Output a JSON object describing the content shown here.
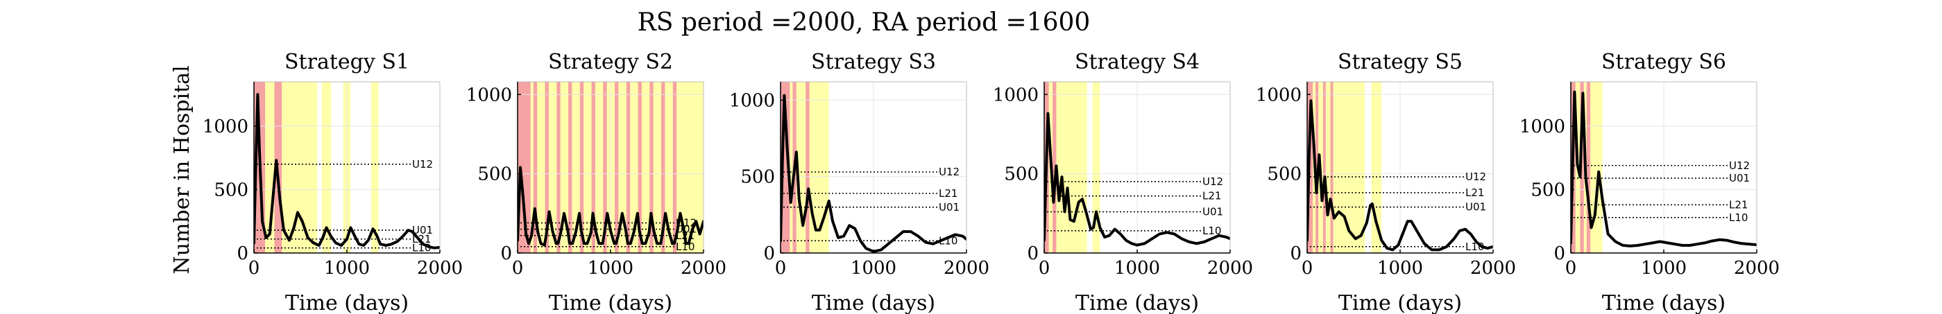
{
  "figure": {
    "suptitle": "RS period =2000, RA period =1600",
    "ylabel": "Number in Hospital",
    "colors": {
      "red_band": "#F5A3A3",
      "yellow_band": "#FFFFAA",
      "line": "#000000",
      "grid": "#e6e6e6"
    }
  },
  "chart_data": [
    {
      "type": "line",
      "title": "Strategy S1",
      "xlabel": "Time (days)",
      "xlim": [
        0,
        2000
      ],
      "ylim": [
        0,
        1350
      ],
      "xticks": [
        0,
        1000,
        2000
      ],
      "yticks": [
        0,
        500,
        1000
      ],
      "red_bands": [
        [
          0,
          120
        ],
        [
          220,
          300
        ]
      ],
      "yellow_bands": [
        [
          120,
          220
        ],
        [
          300,
          680
        ],
        [
          730,
          830
        ],
        [
          960,
          1040
        ],
        [
          1260,
          1340
        ]
      ],
      "thresholds": [
        {
          "label": "U12",
          "value": 700,
          "x_from": 30
        },
        {
          "label": "U01",
          "value": 180,
          "x_from": 30
        },
        {
          "label": "L21",
          "value": 110,
          "x_from": 30
        },
        {
          "label": "L10",
          "value": 40,
          "x_from": 30
        }
      ],
      "series": [
        {
          "x": [
            0,
            20,
            40,
            60,
            90,
            130,
            170,
            200,
            240,
            280,
            320,
            380,
            430,
            470,
            520,
            580,
            640,
            700,
            740,
            780,
            830,
            880,
            940,
            1000,
            1040,
            1080,
            1130,
            1180,
            1230,
            1280,
            1320,
            1360,
            1420,
            1480,
            1540,
            1600,
            1660,
            1700,
            1760,
            1820,
            1880,
            1940,
            2000
          ],
          "y": [
            80,
            700,
            1250,
            800,
            250,
            120,
            150,
            400,
            730,
            420,
            180,
            100,
            200,
            320,
            250,
            120,
            80,
            60,
            120,
            200,
            130,
            80,
            60,
            110,
            200,
            140,
            70,
            60,
            100,
            190,
            140,
            70,
            60,
            70,
            90,
            130,
            180,
            170,
            120,
            70,
            50,
            40,
            45
          ]
        }
      ]
    },
    {
      "type": "line",
      "title": "Strategy S2",
      "xlabel": "Time (days)",
      "xlim": [
        0,
        2000
      ],
      "ylim": [
        0,
        1080
      ],
      "xticks": [
        0,
        1000,
        2000
      ],
      "yticks": [
        0,
        500,
        1000
      ],
      "red_bands": [
        [
          0,
          140
        ],
        [
          170,
          210
        ],
        [
          295,
          335
        ],
        [
          420,
          460
        ],
        [
          545,
          585
        ],
        [
          670,
          710
        ],
        [
          795,
          835
        ],
        [
          920,
          960
        ],
        [
          1045,
          1085
        ],
        [
          1170,
          1210
        ],
        [
          1295,
          1335
        ],
        [
          1420,
          1460
        ],
        [
          1545,
          1585
        ],
        [
          1670,
          1710
        ]
      ],
      "yellow_bands": [
        [
          140,
          170
        ],
        [
          210,
          295
        ],
        [
          335,
          420
        ],
        [
          460,
          545
        ],
        [
          585,
          670
        ],
        [
          710,
          795
        ],
        [
          835,
          920
        ],
        [
          960,
          1045
        ],
        [
          1085,
          1170
        ],
        [
          1210,
          1295
        ],
        [
          1335,
          1420
        ],
        [
          1460,
          1545
        ],
        [
          1585,
          1670
        ],
        [
          1710,
          2000
        ]
      ],
      "thresholds": [
        {
          "label": "U12",
          "value": 190,
          "x_from": 30
        },
        {
          "label": "U01",
          "value": 150,
          "x_from": 30
        },
        {
          "label": "L21",
          "value": 110,
          "x_from": 30
        },
        {
          "label": "L10",
          "value": 40,
          "x_from": 30
        }
      ],
      "series": [
        {
          "x": [
            0,
            30,
            60,
            90,
            120,
            150,
            185,
            215,
            250,
            290,
            310,
            340,
            375,
            415,
            435,
            465,
            500,
            540,
            560,
            590,
            625,
            665,
            685,
            715,
            750,
            790,
            810,
            840,
            875,
            915,
            935,
            965,
            1000,
            1040,
            1060,
            1090,
            1125,
            1165,
            1185,
            1215,
            1250,
            1290,
            1310,
            1340,
            1375,
            1415,
            1435,
            1465,
            1500,
            1540,
            1560,
            1590,
            1625,
            1665,
            1685,
            1715,
            1750,
            1790,
            1810,
            1840,
            1880,
            1920,
            1960,
            2000
          ],
          "y": [
            80,
            540,
            350,
            120,
            60,
            110,
            280,
            140,
            60,
            50,
            120,
            260,
            140,
            60,
            60,
            130,
            250,
            140,
            60,
            60,
            130,
            250,
            140,
            60,
            60,
            130,
            250,
            140,
            60,
            60,
            130,
            250,
            140,
            60,
            60,
            130,
            250,
            140,
            60,
            60,
            130,
            250,
            140,
            60,
            60,
            130,
            250,
            140,
            60,
            60,
            130,
            250,
            140,
            60,
            60,
            130,
            250,
            140,
            60,
            60,
            150,
            200,
            120,
            200
          ]
        }
      ]
    },
    {
      "type": "line",
      "title": "Strategy S3",
      "xlabel": "Time (days)",
      "xlim": [
        0,
        2000
      ],
      "ylim": [
        0,
        1120
      ],
      "xticks": [
        0,
        1000,
        2000
      ],
      "yticks": [
        0,
        500,
        1000
      ],
      "red_bands": [
        [
          0,
          100
        ],
        [
          130,
          170
        ],
        [
          270,
          310
        ]
      ],
      "yellow_bands": [
        [
          100,
          130
        ],
        [
          170,
          270
        ],
        [
          310,
          470
        ],
        [
          470,
          520
        ]
      ],
      "thresholds": [
        {
          "label": "U12",
          "value": 530,
          "x_from": 30
        },
        {
          "label": "L21",
          "value": 390,
          "x_from": 30
        },
        {
          "label": "U01",
          "value": 300,
          "x_from": 30
        },
        {
          "label": "L10",
          "value": 80,
          "x_from": 30
        }
      ],
      "series": [
        {
          "x": [
            0,
            20,
            40,
            70,
            110,
            140,
            170,
            200,
            240,
            280,
            300,
            340,
            380,
            420,
            470,
            520,
            560,
            620,
            680,
            740,
            800,
            860,
            920,
            1000,
            1080,
            1160,
            1240,
            1320,
            1400,
            1480,
            1560,
            1640,
            1720,
            1800,
            1880,
            1960,
            2000
          ],
          "y": [
            80,
            600,
            1030,
            700,
            330,
            500,
            660,
            350,
            180,
            310,
            420,
            260,
            150,
            150,
            240,
            340,
            210,
            100,
            110,
            180,
            160,
            80,
            30,
            10,
            20,
            60,
            100,
            140,
            140,
            110,
            70,
            60,
            80,
            100,
            120,
            110,
            90
          ]
        }
      ]
    },
    {
      "type": "line",
      "title": "Strategy S4",
      "xlabel": "Time (days)",
      "xlim": [
        0,
        2000
      ],
      "ylim": [
        0,
        1080
      ],
      "xticks": [
        0,
        1000,
        2000
      ],
      "yticks": [
        0,
        500,
        1000
      ],
      "red_bands": [
        [
          0,
          50
        ],
        [
          90,
          130
        ]
      ],
      "yellow_bands": [
        [
          50,
          90
        ],
        [
          130,
          460
        ],
        [
          520,
          600
        ]
      ],
      "thresholds": [
        {
          "label": "U12",
          "value": 450,
          "x_from": 30
        },
        {
          "label": "L21",
          "value": 360,
          "x_from": 30
        },
        {
          "label": "U01",
          "value": 260,
          "x_from": 30
        },
        {
          "label": "L10",
          "value": 140,
          "x_from": 30
        }
      ],
      "series": [
        {
          "x": [
            0,
            20,
            40,
            70,
            100,
            130,
            160,
            190,
            220,
            250,
            280,
            320,
            370,
            410,
            450,
            500,
            530,
            560,
            600,
            650,
            700,
            760,
            820,
            880,
            940,
            1000,
            1080,
            1160,
            1240,
            1320,
            1400,
            1480,
            1560,
            1640,
            1720,
            1800,
            1880,
            1960,
            2000
          ],
          "y": [
            80,
            500,
            880,
            600,
            320,
            550,
            330,
            480,
            260,
            410,
            210,
            200,
            320,
            340,
            260,
            150,
            160,
            260,
            160,
            100,
            110,
            150,
            120,
            80,
            60,
            50,
            60,
            90,
            120,
            130,
            120,
            90,
            70,
            60,
            70,
            90,
            110,
            100,
            90
          ]
        }
      ]
    },
    {
      "type": "line",
      "title": "Strategy S5",
      "xlabel": "Time (days)",
      "xlim": [
        0,
        2000
      ],
      "ylim": [
        0,
        1080
      ],
      "xticks": [
        0,
        1000,
        2000
      ],
      "yticks": [
        0,
        500,
        1000
      ],
      "red_bands": [
        [
          0,
          60
        ],
        [
          90,
          120
        ],
        [
          170,
          200
        ],
        [
          250,
          280
        ]
      ],
      "yellow_bands": [
        [
          60,
          90
        ],
        [
          120,
          170
        ],
        [
          200,
          250
        ],
        [
          280,
          620
        ],
        [
          690,
          800
        ]
      ],
      "thresholds": [
        {
          "label": "U12",
          "value": 480,
          "x_from": 30
        },
        {
          "label": "L21",
          "value": 380,
          "x_from": 30
        },
        {
          "label": "U01",
          "value": 290,
          "x_from": 30
        },
        {
          "label": "L10",
          "value": 40,
          "x_from": 30
        }
      ],
      "series": [
        {
          "x": [
            0,
            20,
            40,
            70,
            100,
            130,
            160,
            190,
            220,
            250,
            290,
            340,
            400,
            450,
            520,
            580,
            640,
            680,
            700,
            740,
            800,
            860,
            920,
            980,
            1040,
            1080,
            1120,
            1180,
            1260,
            1340,
            1420,
            1500,
            1580,
            1640,
            1700,
            1760,
            1820,
            1880,
            1940,
            2000
          ],
          "y": [
            80,
            600,
            960,
            700,
            380,
            620,
            330,
            480,
            240,
            340,
            220,
            260,
            230,
            140,
            90,
            110,
            190,
            300,
            310,
            200,
            80,
            30,
            20,
            50,
            140,
            200,
            200,
            140,
            60,
            20,
            20,
            40,
            90,
            140,
            150,
            120,
            70,
            40,
            30,
            40
          ]
        }
      ]
    },
    {
      "type": "line",
      "title": "Strategy S6",
      "xlabel": "Time (days)",
      "xlim": [
        0,
        2000
      ],
      "ylim": [
        0,
        1350
      ],
      "xticks": [
        0,
        1000,
        2000
      ],
      "yticks": [
        0,
        500,
        1000
      ],
      "red_bands": [
        [
          0,
          50
        ],
        [
          100,
          140
        ],
        [
          170,
          210
        ]
      ],
      "yellow_bands": [
        [
          50,
          100
        ],
        [
          140,
          170
        ],
        [
          210,
          300
        ],
        [
          300,
          340
        ]
      ],
      "thresholds": [
        {
          "label": "U12",
          "value": 690,
          "x_from": 30
        },
        {
          "label": "U01",
          "value": 590,
          "x_from": 30
        },
        {
          "label": "L21",
          "value": 380,
          "x_from": 30
        },
        {
          "label": "L10",
          "value": 280,
          "x_from": 30
        }
      ],
      "series": [
        {
          "x": [
            0,
            20,
            40,
            70,
            100,
            130,
            160,
            190,
            220,
            260,
            300,
            340,
            400,
            480,
            560,
            640,
            720,
            800,
            880,
            960,
            1040,
            1120,
            1200,
            1280,
            1360,
            1440,
            1520,
            1600,
            1680,
            1760,
            1840,
            1920,
            2000
          ],
          "y": [
            80,
            700,
            1270,
            700,
            600,
            1260,
            600,
            400,
            200,
            300,
            640,
            420,
            150,
            90,
            60,
            55,
            60,
            70,
            80,
            90,
            80,
            70,
            60,
            60,
            70,
            80,
            95,
            105,
            100,
            85,
            75,
            70,
            65
          ]
        }
      ]
    }
  ]
}
